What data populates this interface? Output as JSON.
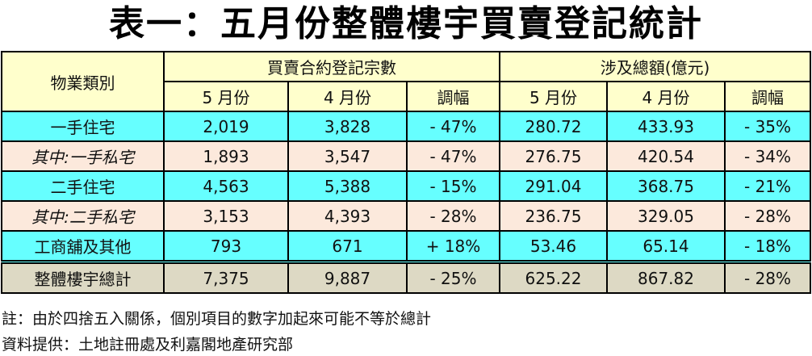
{
  "title": "表一：五月份整體樓宇買賣登記統計",
  "headers": {
    "category": "物業類別",
    "group1": "買賣合約登記宗數",
    "group2": "涉及總額(億元)",
    "may": "5 月份",
    "apr": "4 月份",
    "change": "調幅"
  },
  "rows": [
    {
      "label": "一手住宅",
      "c_may": "2,019",
      "c_apr": "3,828",
      "c_chg": "- 47%",
      "v_may": "280.72",
      "v_apr": "433.93",
      "v_chg": "- 35%"
    },
    {
      "label": "其中:一手私宅",
      "c_may": "1,893",
      "c_apr": "3,547",
      "c_chg": "- 47%",
      "v_may": "276.75",
      "v_apr": "420.54",
      "v_chg": "- 34%"
    },
    {
      "label": "二手住宅",
      "c_may": "4,563",
      "c_apr": "5,388",
      "c_chg": "- 15%",
      "v_may": "291.04",
      "v_apr": "368.75",
      "v_chg": "- 21%"
    },
    {
      "label": "其中:二手私宅",
      "c_may": "3,153",
      "c_apr": "4,393",
      "c_chg": "- 28%",
      "v_may": "236.75",
      "v_apr": "329.05",
      "v_chg": "- 28%"
    },
    {
      "label": "工商舖及其他",
      "c_may": "793",
      "c_apr": "671",
      "c_chg": "+ 18%",
      "v_may": "53.46",
      "v_apr": "65.14",
      "v_chg": "- 18%"
    },
    {
      "label": "整體樓宇總計",
      "c_may": "7,375",
      "c_apr": "9,887",
      "c_chg": "- 25%",
      "v_may": "625.22",
      "v_apr": "867.82",
      "v_chg": "- 28%"
    }
  ],
  "notes": {
    "note": "註：由於四捨五入關係，個別項目的數字加起來可能不等於總計",
    "source": "資料提供：土地註冊處及利嘉閣地產研究部"
  }
}
